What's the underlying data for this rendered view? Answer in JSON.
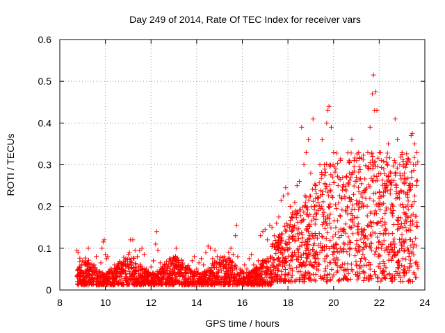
{
  "chart_data": {
    "type": "scatter",
    "title": "Day 249 of 2014, Rate Of TEC Index for receiver vars",
    "xlabel": "GPS time / hours",
    "ylabel": "ROTI / TECUs",
    "xlim": [
      8,
      24
    ],
    "ylim": [
      0,
      0.6
    ],
    "x_ticks": [
      "8",
      "10",
      "12",
      "14",
      "16",
      "18",
      "20",
      "22",
      "24"
    ],
    "y_ticks": [
      "0",
      "0.1",
      "0.2",
      "0.3",
      "0.4",
      "0.5",
      "0.6"
    ],
    "grid": true,
    "marker": "+",
    "color": "#ff0000",
    "series": [
      {
        "name": "ROTI",
        "points": [
          [
            8.75,
            0.095
          ],
          [
            8.8,
            0.09
          ],
          [
            8.85,
            0.055
          ],
          [
            8.9,
            0.04
          ],
          [
            9.0,
            0.07
          ],
          [
            9.1,
            0.06
          ],
          [
            9.2,
            0.05
          ],
          [
            9.25,
            0.1
          ],
          [
            9.3,
            0.045
          ],
          [
            9.4,
            0.035
          ],
          [
            9.5,
            0.06
          ],
          [
            9.6,
            0.08
          ],
          [
            9.7,
            0.04
          ],
          [
            9.8,
            0.065
          ],
          [
            9.85,
            0.1
          ],
          [
            9.9,
            0.115
          ],
          [
            9.95,
            0.12
          ],
          [
            10.0,
            0.085
          ],
          [
            10.05,
            0.075
          ],
          [
            10.1,
            0.08
          ],
          [
            10.2,
            0.05
          ],
          [
            10.3,
            0.04
          ],
          [
            10.4,
            0.06
          ],
          [
            10.5,
            0.04
          ],
          [
            10.6,
            0.035
          ],
          [
            10.7,
            0.05
          ],
          [
            10.8,
            0.045
          ],
          [
            10.9,
            0.075
          ],
          [
            11.0,
            0.085
          ],
          [
            11.05,
            0.09
          ],
          [
            11.1,
            0.12
          ],
          [
            11.2,
            0.12
          ],
          [
            11.3,
            0.095
          ],
          [
            11.4,
            0.08
          ],
          [
            11.5,
            0.095
          ],
          [
            11.6,
            0.1
          ],
          [
            11.7,
            0.085
          ],
          [
            11.8,
            0.05
          ],
          [
            11.9,
            0.04
          ],
          [
            12.0,
            0.055
          ],
          [
            12.1,
            0.07
          ],
          [
            12.2,
            0.11
          ],
          [
            12.25,
            0.14
          ],
          [
            12.3,
            0.095
          ],
          [
            12.4,
            0.065
          ],
          [
            12.5,
            0.05
          ],
          [
            12.6,
            0.045
          ],
          [
            12.7,
            0.055
          ],
          [
            12.8,
            0.03
          ],
          [
            12.9,
            0.04
          ],
          [
            13.0,
            0.045
          ],
          [
            13.1,
            0.1
          ],
          [
            13.2,
            0.06
          ],
          [
            13.3,
            0.04
          ],
          [
            13.4,
            0.035
          ],
          [
            13.5,
            0.04
          ],
          [
            13.6,
            0.055
          ],
          [
            13.7,
            0.05
          ],
          [
            13.8,
            0.07
          ],
          [
            13.9,
            0.08
          ],
          [
            14.0,
            0.05
          ],
          [
            14.1,
            0.065
          ],
          [
            14.2,
            0.075
          ],
          [
            14.3,
            0.06
          ],
          [
            14.4,
            0.09
          ],
          [
            14.5,
            0.105
          ],
          [
            14.6,
            0.1
          ],
          [
            14.7,
            0.075
          ],
          [
            14.8,
            0.095
          ],
          [
            14.9,
            0.08
          ],
          [
            15.0,
            0.06
          ],
          [
            15.1,
            0.065
          ],
          [
            15.2,
            0.08
          ],
          [
            15.3,
            0.07
          ],
          [
            15.4,
            0.09
          ],
          [
            15.5,
            0.1
          ],
          [
            15.6,
            0.085
          ],
          [
            15.7,
            0.13
          ],
          [
            15.75,
            0.155
          ],
          [
            15.8,
            0.08
          ],
          [
            15.9,
            0.05
          ],
          [
            16.0,
            0.045
          ],
          [
            16.1,
            0.06
          ],
          [
            16.2,
            0.05
          ],
          [
            16.3,
            0.075
          ],
          [
            16.4,
            0.085
          ],
          [
            16.5,
            0.06
          ],
          [
            16.6,
            0.05
          ],
          [
            16.7,
            0.07
          ],
          [
            16.8,
            0.13
          ],
          [
            16.9,
            0.14
          ],
          [
            17.0,
            0.145
          ],
          [
            17.1,
            0.12
          ],
          [
            17.2,
            0.155
          ],
          [
            17.3,
            0.15
          ],
          [
            17.4,
            0.13
          ],
          [
            17.5,
            0.16
          ],
          [
            17.6,
            0.175
          ],
          [
            17.7,
            0.215
          ],
          [
            17.8,
            0.225
          ],
          [
            17.9,
            0.245
          ],
          [
            18.0,
            0.23
          ],
          [
            18.1,
            0.2
          ],
          [
            18.2,
            0.185
          ],
          [
            18.3,
            0.21
          ],
          [
            18.4,
            0.25
          ],
          [
            18.5,
            0.26
          ],
          [
            18.6,
            0.39
          ],
          [
            18.7,
            0.3
          ],
          [
            18.8,
            0.33
          ],
          [
            18.9,
            0.36
          ],
          [
            19.0,
            0.28
          ],
          [
            19.1,
            0.41
          ],
          [
            19.2,
            0.25
          ],
          [
            19.3,
            0.22
          ],
          [
            19.4,
            0.3
          ],
          [
            19.5,
            0.36
          ],
          [
            19.6,
            0.3
          ],
          [
            19.7,
            0.4
          ],
          [
            19.75,
            0.43
          ],
          [
            19.8,
            0.44
          ],
          [
            19.9,
            0.39
          ],
          [
            20.0,
            0.33
          ],
          [
            20.1,
            0.29
          ],
          [
            20.2,
            0.25
          ],
          [
            20.3,
            0.31
          ],
          [
            20.4,
            0.27
          ],
          [
            20.5,
            0.22
          ],
          [
            20.6,
            0.2
          ],
          [
            20.7,
            0.28
          ],
          [
            20.8,
            0.36
          ],
          [
            20.9,
            0.31
          ],
          [
            21.0,
            0.27
          ],
          [
            21.1,
            0.33
          ],
          [
            21.2,
            0.23
          ],
          [
            21.3,
            0.2
          ],
          [
            21.4,
            0.24
          ],
          [
            21.5,
            0.33
          ],
          [
            21.6,
            0.39
          ],
          [
            21.7,
            0.47
          ],
          [
            21.75,
            0.515
          ],
          [
            21.8,
            0.43
          ],
          [
            21.85,
            0.475
          ],
          [
            21.9,
            0.43
          ],
          [
            22.0,
            0.33
          ],
          [
            22.1,
            0.31
          ],
          [
            22.2,
            0.29
          ],
          [
            22.3,
            0.25
          ],
          [
            22.4,
            0.35
          ],
          [
            22.5,
            0.24
          ],
          [
            22.6,
            0.2
          ],
          [
            22.7,
            0.41
          ],
          [
            22.8,
            0.36
          ],
          [
            22.9,
            0.3
          ],
          [
            23.0,
            0.33
          ],
          [
            23.1,
            0.28
          ],
          [
            23.2,
            0.3
          ],
          [
            23.3,
            0.25
          ],
          [
            23.4,
            0.37
          ],
          [
            23.45,
            0.375
          ],
          [
            23.5,
            0.3
          ],
          [
            23.55,
            0.35
          ],
          [
            23.6,
            0.3
          ],
          [
            23.65,
            0.33
          ]
        ]
      }
    ]
  }
}
